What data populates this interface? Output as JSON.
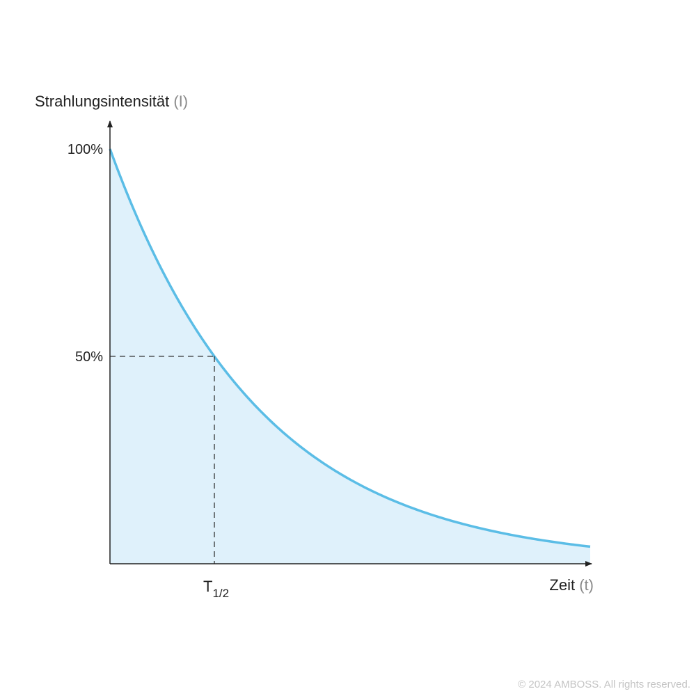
{
  "chart_data": {
    "type": "area",
    "title": "",
    "ylabel": "Strahlungsintensität",
    "ylabel_symbol": "(I)",
    "xlabel": "Zeit",
    "xlabel_symbol": "(t)",
    "y_ticks": [
      {
        "value": 100,
        "label": "100%"
      },
      {
        "value": 50,
        "label": "50%"
      }
    ],
    "x_ticks": [
      {
        "value": 1,
        "label_main": "T",
        "label_sub": "1/2"
      }
    ],
    "ylim": [
      0,
      110
    ],
    "xlim": [
      0,
      4.6
    ],
    "series": [
      {
        "function": "exponential_decay",
        "initial": 100,
        "half_life": 1,
        "x_start": 0,
        "x_end": 4.6
      }
    ],
    "annotations": [
      {
        "type": "dashed_guide",
        "x": 1,
        "y": 50
      }
    ],
    "grid": false,
    "legend": "none",
    "colors": {
      "curve": "#5bbde6",
      "fill": "#dff1fb",
      "axis": "#222222",
      "label": "#222222",
      "symbol": "#8a8a8a"
    }
  },
  "footer": {
    "copyright": "© 2024 AMBOSS. All rights reserved."
  }
}
